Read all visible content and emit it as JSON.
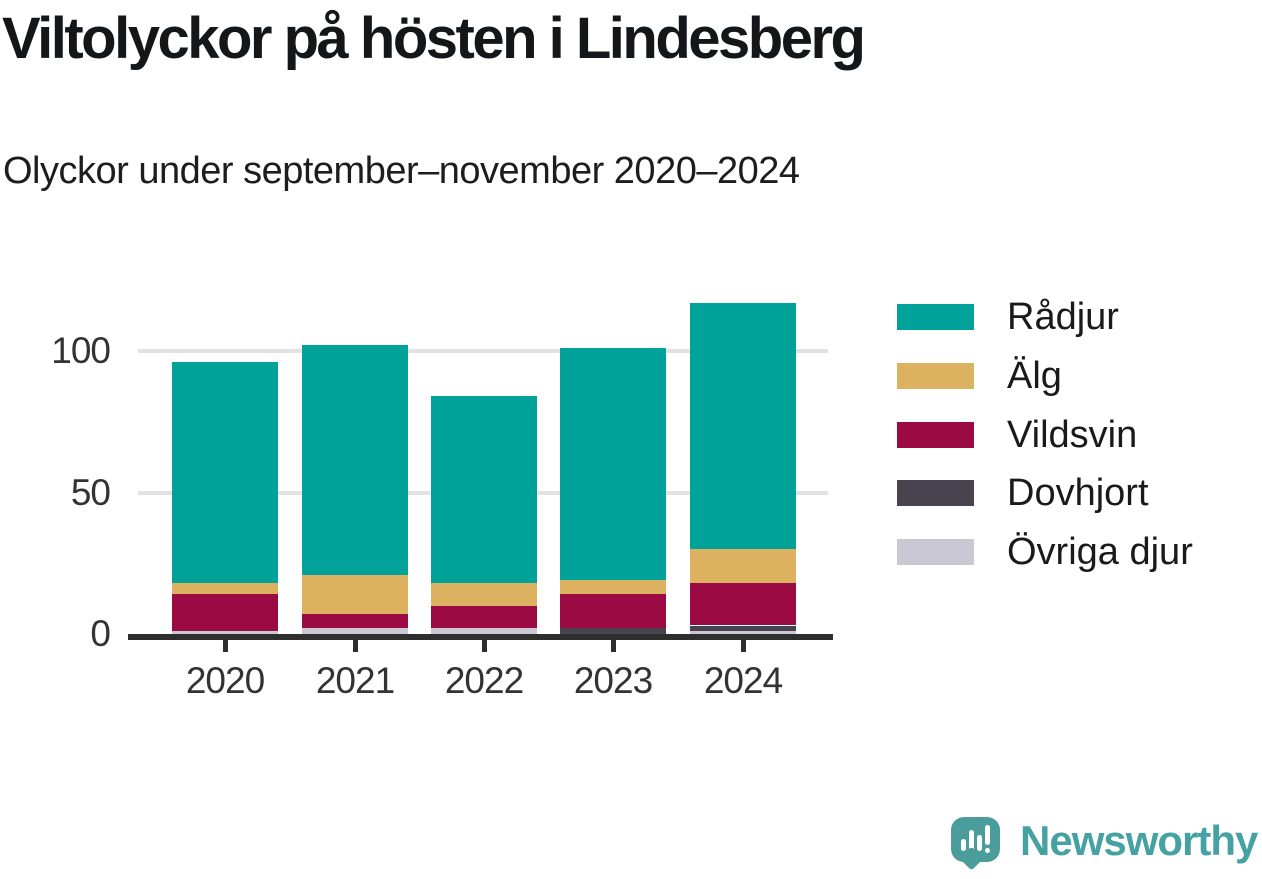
{
  "header": {
    "title": "Viltolyckor på hösten i Lindesberg",
    "subtitle": "Olyckor under september–november 2020–2024"
  },
  "colors": {
    "title_text": "#14171a",
    "axis_line": "#2e2e2e",
    "gridline": "#e2e2e2",
    "axis_label_text": "#333333",
    "legend_text": "#1a1a1a",
    "brand_text": "#46a2a2",
    "logo_bubble": "#4a9d9b"
  },
  "chart_data": {
    "type": "bar",
    "stacked": true,
    "title": "Viltolyckor på hösten i Lindesberg",
    "subtitle": "Olyckor under september–november 2020–2024",
    "categories": [
      "2020",
      "2021",
      "2022",
      "2023",
      "2024"
    ],
    "series": [
      {
        "name": "Rådjur",
        "color": "#00a29a",
        "values": [
          78,
          81,
          66,
          82,
          87
        ]
      },
      {
        "name": "Älg",
        "color": "#dcb15f",
        "values": [
          4,
          14,
          8,
          5,
          12
        ]
      },
      {
        "name": "Vildsvin",
        "color": "#9b0a42",
        "values": [
          13,
          5,
          8,
          12,
          15
        ]
      },
      {
        "name": "Dovhjort",
        "color": "#47444f",
        "values": [
          0,
          0,
          0,
          2,
          2
        ]
      },
      {
        "name": "Övriga djur",
        "color": "#c9c8d4",
        "values": [
          1,
          2,
          2,
          0,
          1
        ]
      }
    ],
    "totals": [
      96,
      102,
      84,
      101,
      117
    ],
    "xlabel": "",
    "ylabel": "",
    "yticks": [
      0,
      50,
      100
    ],
    "ylim": [
      0,
      120
    ],
    "grid": true,
    "legend_position": "right",
    "stack_order_bottom_to_top": [
      "Övriga djur",
      "Dovhjort",
      "Vildsvin",
      "Älg",
      "Rådjur"
    ]
  },
  "footer": {
    "brand": "Newsworthy"
  }
}
